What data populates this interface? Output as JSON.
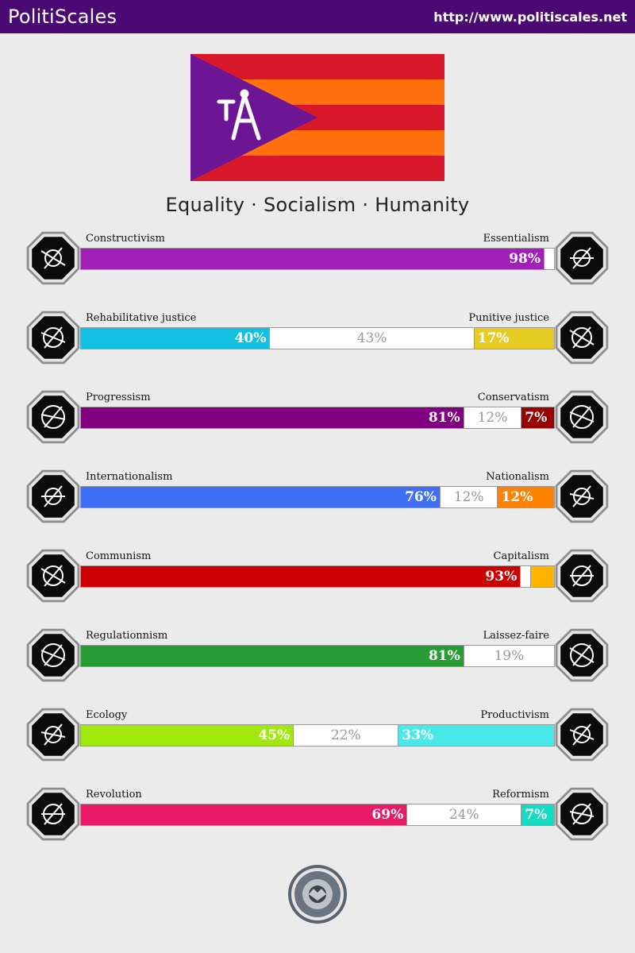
{
  "header": {
    "brand": "PolitiScales",
    "url": "http://www.politiscales.net"
  },
  "slogan": "Equality · Socialism · Humanity",
  "flag_colors": {
    "stripe_red": "#d8182a",
    "stripe_orange": "#ff6f0e",
    "triangle": "#6c1695",
    "emblem": "#ffffff"
  },
  "axes": [
    {
      "left_label": "Constructivism",
      "right_label": "Essentialism",
      "left_pct": 98,
      "mid_pct": 0,
      "right_pct": 2,
      "left_text": "98%",
      "mid_text": "",
      "right_text": "",
      "left_color": "#a020b8",
      "right_color": "#ffffff",
      "left_icon": "eye-grid-icon",
      "right_icon": "flower-icon"
    },
    {
      "left_label": "Rehabilitative justice",
      "right_label": "Punitive justice",
      "left_pct": 40,
      "mid_pct": 43,
      "right_pct": 17,
      "left_text": "40%",
      "mid_text": "43%",
      "right_text": "17%",
      "left_color": "#13bfe3",
      "right_color": "#e6cb23",
      "left_icon": "handshake-icon",
      "right_icon": "prison-bars-icon"
    },
    {
      "left_label": "Progressism",
      "right_label": "Conservatism",
      "left_pct": 81,
      "mid_pct": 12,
      "right_pct": 7,
      "left_text": "81%",
      "mid_text": "12%",
      "right_text": "7%",
      "left_color": "#800080",
      "right_color": "#990000",
      "left_icon": "rocket-icon",
      "right_icon": "quill-icon"
    },
    {
      "left_label": "Internationalism",
      "right_label": "Nationalism",
      "left_pct": 76,
      "mid_pct": 12,
      "right_pct": 12,
      "left_text": "76%",
      "mid_text": "12%",
      "right_text": "12%",
      "left_color": "#3f6ff7",
      "right_color": "#ff8100",
      "left_icon": "globe-icon",
      "right_icon": "flag-icon"
    },
    {
      "left_label": "Communism",
      "right_label": "Capitalism",
      "left_pct": 93,
      "mid_pct": 2,
      "right_pct": 5,
      "left_text": "93%",
      "mid_text": "",
      "right_text": "",
      "left_color": "#cc0000",
      "right_color": "#ffb400",
      "left_icon": "hammer-sickle-icon",
      "right_icon": "money-bag-icon"
    },
    {
      "left_label": "Regulationnism",
      "right_label": "Laissez-faire",
      "left_pct": 81,
      "mid_pct": 19,
      "right_pct": 0,
      "left_text": "81%",
      "mid_text": "19%",
      "right_text": "",
      "left_color": "#299d35",
      "right_color": "#ffffff",
      "left_icon": "ruler-icon",
      "right_icon": "butterfly-icon"
    },
    {
      "left_label": "Ecology",
      "right_label": "Productivism",
      "left_pct": 45,
      "mid_pct": 22,
      "right_pct": 33,
      "left_text": "45%",
      "mid_text": "22%",
      "right_text": "33%",
      "left_color": "#a0e80d",
      "right_color": "#4ae8e8",
      "left_icon": "sprout-icon",
      "right_icon": "gear-icon"
    },
    {
      "left_label": "Revolution",
      "right_label": "Reformism",
      "left_pct": 69,
      "mid_pct": 24,
      "right_pct": 7,
      "left_text": "69%",
      "mid_text": "24%",
      "right_text": "7%",
      "left_color": "#eb1a66",
      "right_color": "#14dcc4",
      "left_icon": "fist-icon",
      "right_icon": "parliament-icon"
    }
  ],
  "seal_icon": "politiscales-seal-icon"
}
